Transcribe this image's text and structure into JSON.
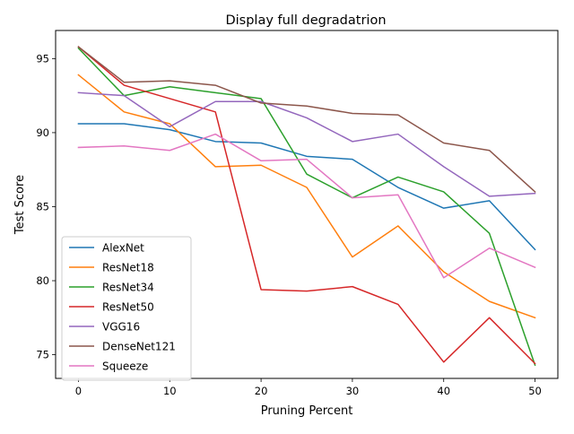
{
  "chart_data": {
    "type": "line",
    "title": "Display full degradatrion",
    "xlabel": "Pruning Percent",
    "ylabel": "Test Score",
    "xlim": [
      -2.5,
      52.5
    ],
    "ylim": [
      73.4,
      96.9
    ],
    "xticks": [
      0,
      10,
      20,
      30,
      40,
      50
    ],
    "yticks": [
      75,
      80,
      85,
      90,
      95
    ],
    "grid": false,
    "legend_position": "lower-left",
    "x": [
      0,
      5,
      10,
      15,
      20,
      25,
      30,
      35,
      40,
      45,
      50
    ],
    "series": [
      {
        "name": "AlexNet",
        "color": "#1f77b4",
        "values": [
          90.6,
          90.6,
          90.2,
          89.4,
          89.3,
          88.4,
          88.2,
          86.3,
          84.9,
          85.4,
          82.1
        ]
      },
      {
        "name": "ResNet18",
        "color": "#ff7f0e",
        "values": [
          93.9,
          91.4,
          90.6,
          87.7,
          87.8,
          86.3,
          81.6,
          83.7,
          80.6,
          78.6,
          77.5
        ]
      },
      {
        "name": "ResNet34",
        "color": "#2ca02c",
        "values": [
          95.7,
          92.5,
          93.1,
          92.7,
          92.3,
          87.2,
          85.6,
          87.0,
          86.0,
          83.2,
          74.3
        ]
      },
      {
        "name": "ResNet50",
        "color": "#d62728",
        "values": [
          95.8,
          93.2,
          92.3,
          91.4,
          79.4,
          79.3,
          79.6,
          78.4,
          74.5,
          77.5,
          74.4
        ]
      },
      {
        "name": "VGG16",
        "color": "#9467bd",
        "values": [
          92.7,
          92.5,
          90.4,
          92.1,
          92.1,
          91.0,
          89.4,
          89.9,
          87.7,
          85.7,
          85.9
        ]
      },
      {
        "name": "DenseNet121",
        "color": "#8c564b",
        "values": [
          95.8,
          93.4,
          93.5,
          93.2,
          92.0,
          91.8,
          91.3,
          91.2,
          89.3,
          88.8,
          86.0
        ]
      },
      {
        "name": "Squeeze",
        "color": "#e377c2",
        "values": [
          89.0,
          89.1,
          88.8,
          89.9,
          88.1,
          88.2,
          85.6,
          85.8,
          80.2,
          82.2,
          80.9
        ]
      }
    ]
  }
}
